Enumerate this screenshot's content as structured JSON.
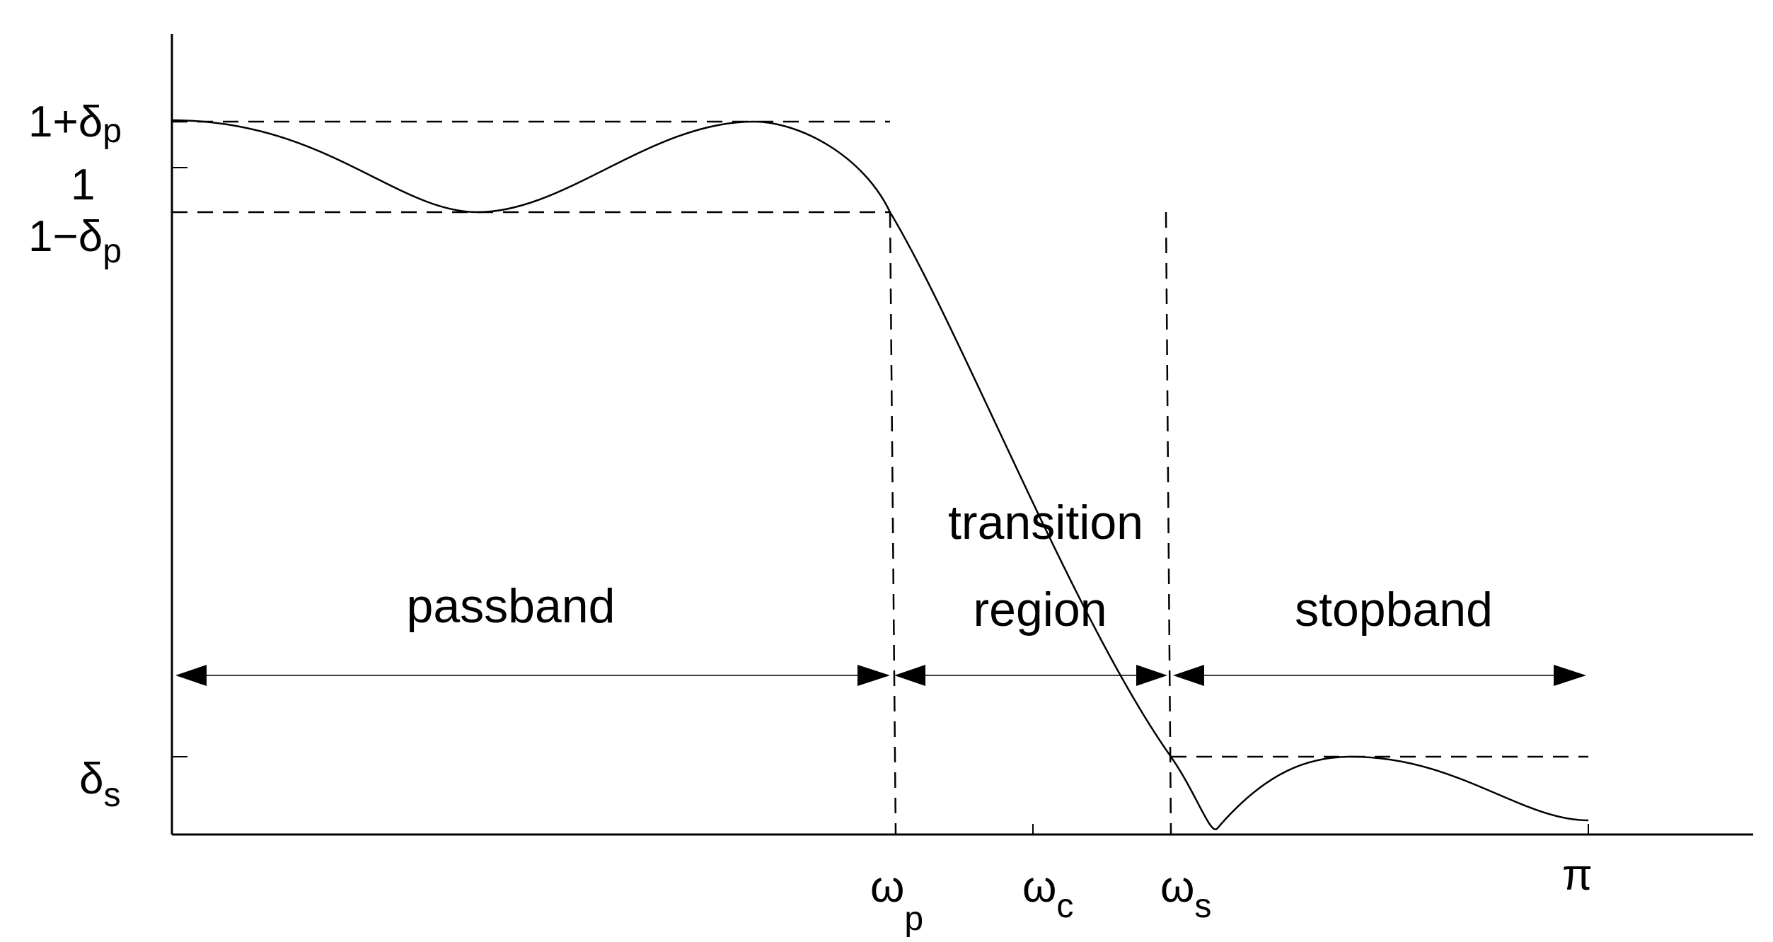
{
  "y_labels": {
    "upper": {
      "main": "1+δ",
      "sub": "p"
    },
    "one": "1",
    "lower": {
      "main": "1−δ",
      "sub": "p"
    },
    "stop": {
      "main": "δ",
      "sub": "s"
    }
  },
  "x_labels": {
    "wp": {
      "main": "ω",
      "sub": "p"
    },
    "wc": {
      "main": "ω",
      "sub": "c"
    },
    "ws": {
      "main": "ω",
      "sub": "s"
    },
    "pi": "π"
  },
  "regions": {
    "passband": "passband",
    "transition_1": "transition",
    "transition_2": "region",
    "stopband": "stopband"
  }
}
